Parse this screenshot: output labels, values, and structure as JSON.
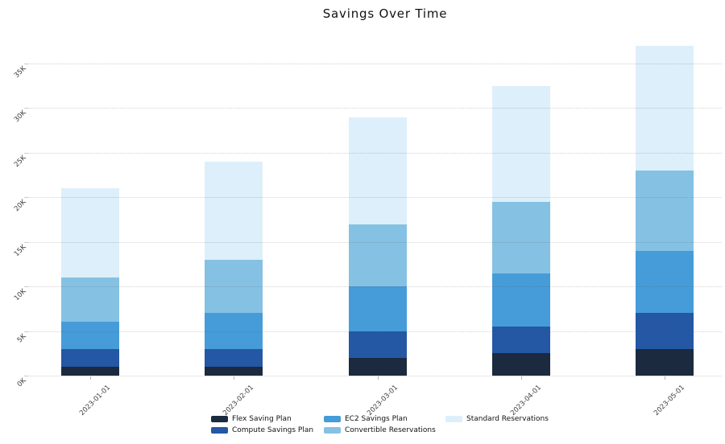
{
  "chart_data": {
    "type": "bar",
    "stacked": true,
    "title": "Savings Over Time",
    "categories": [
      "2023-01-01",
      "2023-02-01",
      "2023-03-01",
      "2023-04-01",
      "2023-05-01"
    ],
    "series": [
      {
        "name": "Flex Saving Plan",
        "color": "#1b2a3e",
        "values": [
          1000,
          1000,
          2000,
          2500,
          3000
        ]
      },
      {
        "name": "Compute Savings Plan",
        "color": "#2457a4",
        "values": [
          2000,
          2000,
          3000,
          3000,
          4000
        ]
      },
      {
        "name": "EC2 Savings Plan",
        "color": "#459cd8",
        "values": [
          3000,
          4000,
          5000,
          6000,
          7000
        ]
      },
      {
        "name": "Convertible Reservations",
        "color": "#85c1e3",
        "values": [
          5000,
          6000,
          7000,
          8000,
          9000
        ]
      },
      {
        "name": "Standard Reservations",
        "color": "#ddeffa",
        "values": [
          10000,
          11000,
          12000,
          13000,
          14000
        ]
      }
    ],
    "stack_totals": [
      21000,
      24000,
      29000,
      32500,
      37000
    ],
    "xlabel": "",
    "ylabel": "",
    "y_ticks": [
      {
        "value": 0,
        "label": "0K"
      },
      {
        "value": 5000,
        "label": "5K"
      },
      {
        "value": 10000,
        "label": "10K"
      },
      {
        "value": 15000,
        "label": "15K"
      },
      {
        "value": 20000,
        "label": "20K"
      },
      {
        "value": 25000,
        "label": "25K"
      },
      {
        "value": 30000,
        "label": "30K"
      },
      {
        "value": 35000,
        "label": "35K"
      }
    ],
    "ylim": [
      0,
      38000
    ],
    "grid": {
      "horizontal": true,
      "line_style": "dotted"
    },
    "tick_label_rotation_deg": 45,
    "legend": {
      "position": "bottom-center",
      "columns": 3,
      "items": [
        "Flex Saving Plan",
        "Compute Savings Plan",
        "EC2 Savings Plan",
        "Convertible Reservations",
        "Standard Reservations"
      ]
    }
  }
}
